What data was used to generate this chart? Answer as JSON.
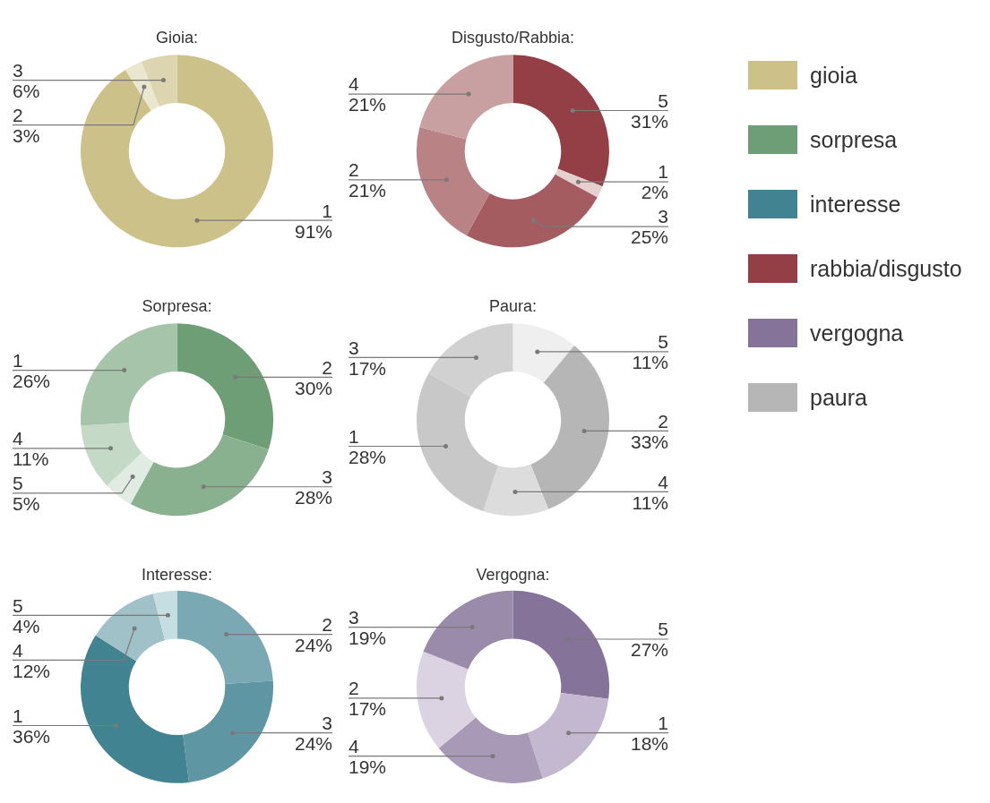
{
  "chart_data": [
    {
      "type": "donut",
      "title": "Gioia:",
      "categories": [
        "1",
        "2",
        "3"
      ],
      "values": [
        91,
        3,
        6
      ],
      "value_labels": [
        "91%",
        "3%",
        "6%"
      ],
      "colors": [
        "#cdc18a",
        "#ebe6d0",
        "#ddd5b0"
      ]
    },
    {
      "type": "donut",
      "title": "Disgusto/Rabbia:",
      "categories": [
        "5",
        "1",
        "3",
        "2",
        "4"
      ],
      "values": [
        31,
        2,
        25,
        21,
        21
      ],
      "value_labels": [
        "31%",
        "2%",
        "25%",
        "21%",
        "21%"
      ],
      "colors": [
        "#943f45",
        "#e6cfcf",
        "#a45c61",
        "#b98386",
        "#c9a0a1"
      ]
    },
    {
      "type": "donut",
      "title": "Sorpresa:",
      "categories": [
        "2",
        "3",
        "5",
        "4",
        "1"
      ],
      "values": [
        30,
        28,
        5,
        11,
        26
      ],
      "value_labels": [
        "30%",
        "28%",
        "5%",
        "11%",
        "26%"
      ],
      "colors": [
        "#6e9e76",
        "#8ab18f",
        "#e0ebe1",
        "#c5d9c7",
        "#a6c4aa"
      ]
    },
    {
      "type": "donut",
      "title": "Paura:",
      "categories": [
        "5",
        "2",
        "4",
        "1",
        "3"
      ],
      "values": [
        11,
        33,
        11,
        28,
        17
      ],
      "value_labels": [
        "11%",
        "33%",
        "11%",
        "28%",
        "17%"
      ],
      "colors": [
        "#efefef",
        "#b5b6b5",
        "#dcdcdc",
        "#c8c8c8",
        "#d0d1d0"
      ]
    },
    {
      "type": "donut",
      "title": "Interesse:",
      "categories": [
        "2",
        "3",
        "1",
        "4",
        "5"
      ],
      "values": [
        24,
        24,
        36,
        12,
        4
      ],
      "value_labels": [
        "24%",
        "24%",
        "36%",
        "12%",
        "4%"
      ],
      "colors": [
        "#7aa9b4",
        "#5e97a3",
        "#428391",
        "#a0c1c8",
        "#c6dde1"
      ]
    },
    {
      "type": "donut",
      "title": "Vergogna:",
      "categories": [
        "5",
        "1",
        "4",
        "2",
        "3"
      ],
      "values": [
        27,
        18,
        19,
        17,
        19
      ],
      "value_labels": [
        "27%",
        "18%",
        "19%",
        "17%",
        "19%"
      ],
      "colors": [
        "#857399",
        "#c3b8cf",
        "#a899b6",
        "#dbd3e2",
        "#9b8bab"
      ]
    },
    {
      "type": "other",
      "series": [
        {
          "name": "gioia",
          "color": "#cdc18a"
        },
        {
          "name": "sorpresa",
          "color": "#6e9e76"
        },
        {
          "name": "interesse",
          "color": "#428391"
        },
        {
          "name": "rabbia/disgusto",
          "color": "#943f45"
        },
        {
          "name": "vergogna",
          "color": "#857399"
        },
        {
          "name": "paura",
          "color": "#b5b6b5"
        }
      ]
    }
  ]
}
